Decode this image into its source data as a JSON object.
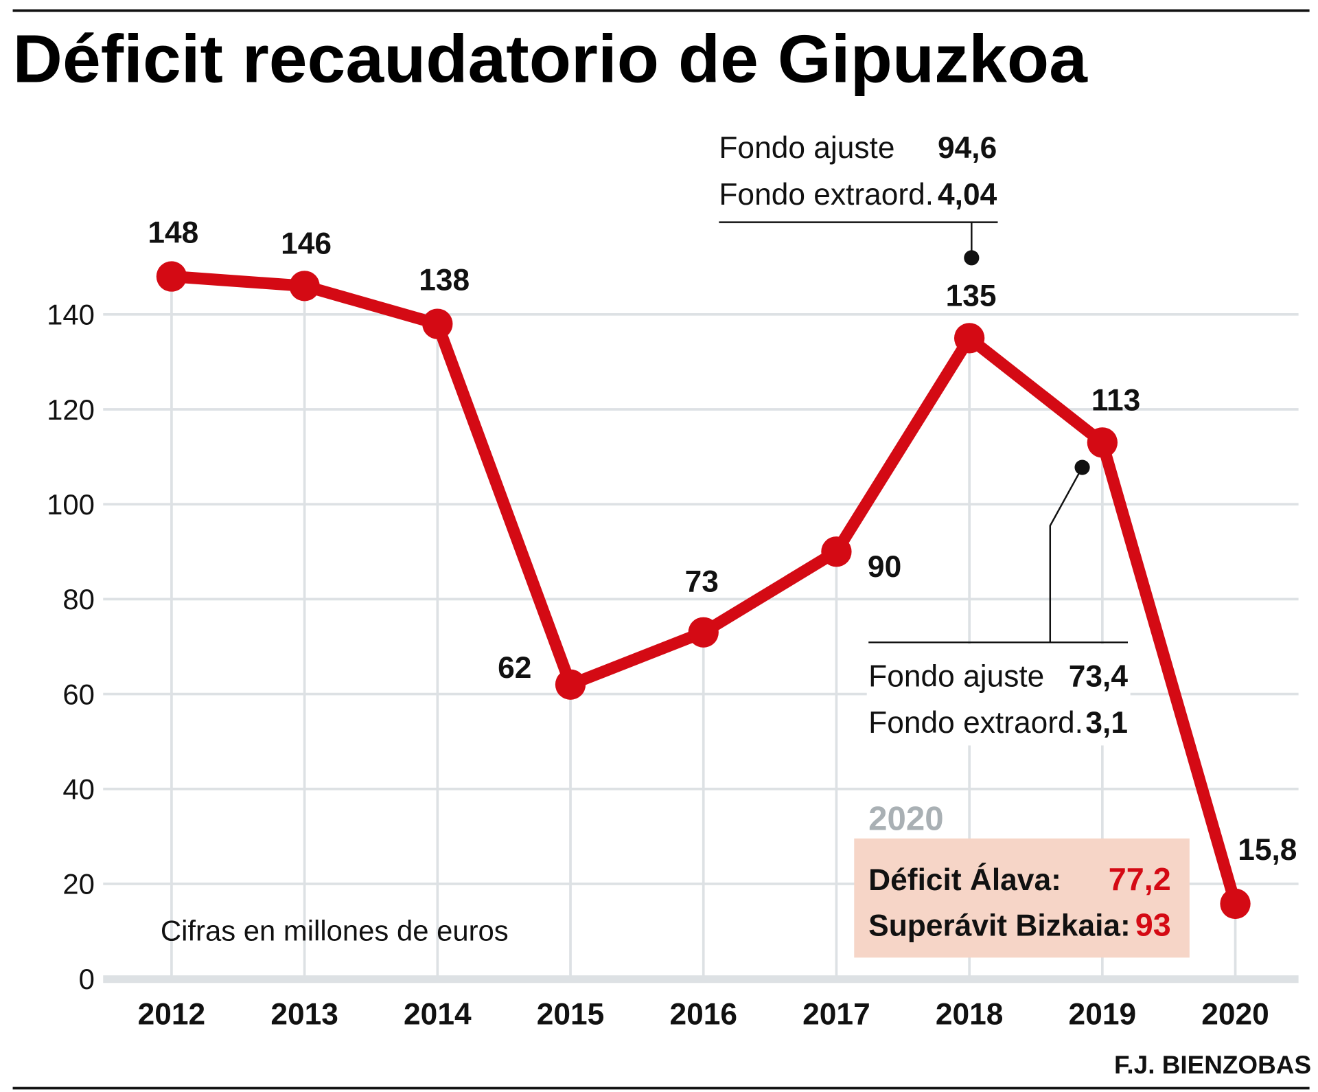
{
  "colors": {
    "line": "#d40a14",
    "grid": "#dde1e4",
    "box": "#f6d5c7",
    "year_label": "#a9b0b4"
  },
  "chart_data": {
    "type": "line",
    "title": "Déficit recaudatorio de Gipuzkoa",
    "note": "Cifras en millones de euros",
    "credit": "F.J. BIENZOBAS",
    "categories": [
      "2012",
      "2013",
      "2014",
      "2015",
      "2016",
      "2017",
      "2018",
      "2019",
      "2020"
    ],
    "values": [
      148,
      146,
      138,
      62,
      73,
      90,
      135,
      113,
      15.8
    ],
    "value_labels": [
      "148",
      "146",
      "138",
      "62",
      "73",
      "90",
      "135",
      "113",
      "15,8"
    ],
    "ylim": [
      0,
      150
    ],
    "yticks": [
      "0",
      "20",
      "40",
      "60",
      "80",
      "100",
      "120",
      "140"
    ],
    "grid": true,
    "annotations": [
      {
        "year": "2018",
        "rows": [
          {
            "label": "Fondo ajuste",
            "value": "94,6"
          },
          {
            "label": "Fondo extraord.",
            "value": "4,04"
          }
        ]
      },
      {
        "year": "2019",
        "rows": [
          {
            "label": "Fondo ajuste",
            "value": "73,4"
          },
          {
            "label": "Fondo extraord.",
            "value": "3,1"
          }
        ]
      }
    ],
    "box": {
      "year": "2020",
      "rows": [
        {
          "label": "Déficit Álava:",
          "value": "77,2"
        },
        {
          "label": "Superávit Bizkaia:",
          "value": "93"
        }
      ]
    }
  }
}
